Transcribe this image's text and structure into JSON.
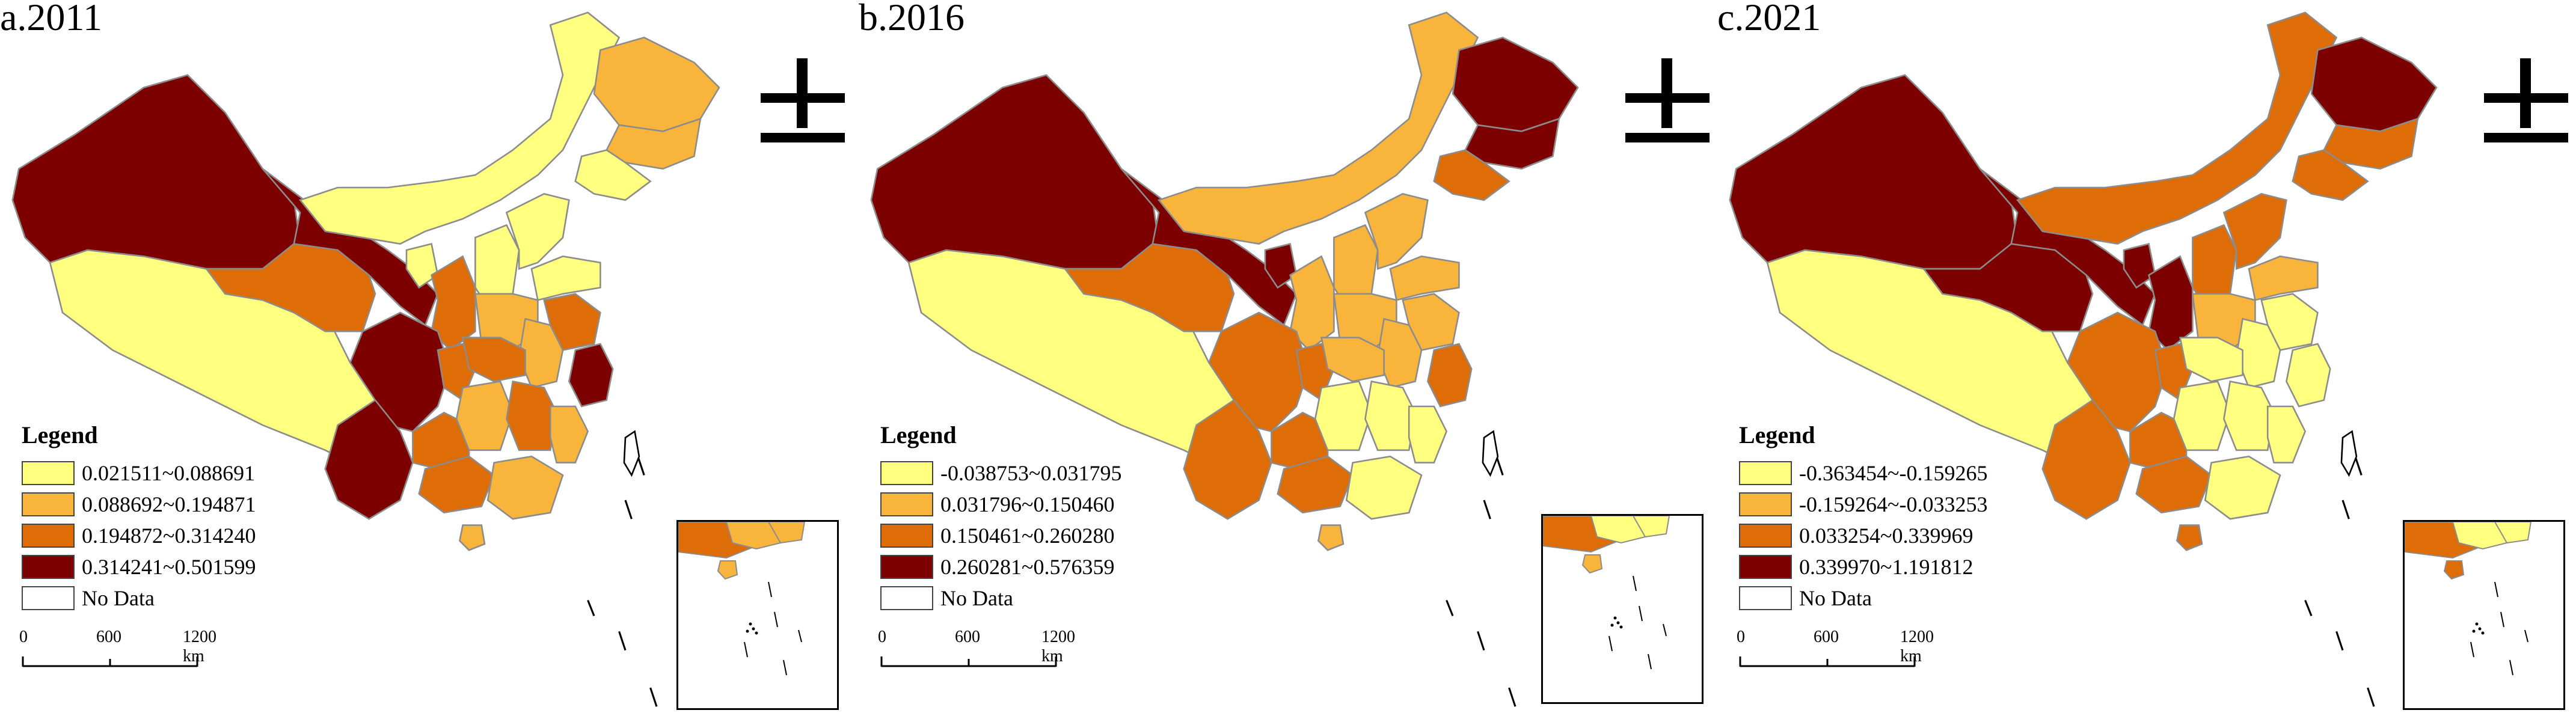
{
  "colors": {
    "class1": "#ffff80",
    "class2": "#f9b43b",
    "class3": "#de6c07",
    "class4": "#7d0000",
    "nodata": "#ffffff",
    "border": "#8c8c8c"
  },
  "panels": [
    {
      "title": "a.2011",
      "legend_title": "Legend",
      "legend": [
        "0.021511~0.088691",
        "0.088692~0.194871",
        "0.194872~0.314240",
        "0.314241~0.501599"
      ],
      "nodata_label": "No Data",
      "scale": [
        "0",
        "600",
        "1200 km"
      ],
      "regions": {
        "xinjiang": 4,
        "tibet": 1,
        "qinghai": 3,
        "gansu": 4,
        "inner_mongolia": 1,
        "heilongjiang": 2,
        "jilin": 2,
        "liaoning": 1,
        "ningxia": 1,
        "shaanxi": 3,
        "shanxi": 1,
        "hebei": 1,
        "shandong": 1,
        "henan": 2,
        "jiangsu": 3,
        "anhui": 2,
        "zhejiang": 4,
        "sichuan": 4,
        "chongqing": 3,
        "yunnan": 4,
        "guizhou": 3,
        "hubei": 3,
        "hunan": 2,
        "jiangxi": 3,
        "guangxi": 3,
        "guangdong": 2,
        "fujian": 2,
        "hainan": 2
      }
    },
    {
      "title": "b.2016",
      "legend_title": "Legend",
      "legend": [
        "-0.038753~0.031795",
        "0.031796~0.150460",
        "0.150461~0.260280",
        "0.260281~0.576359"
      ],
      "nodata_label": "No Data",
      "scale": [
        "0",
        "600",
        "1200 km"
      ],
      "regions": {
        "xinjiang": 4,
        "tibet": 1,
        "qinghai": 3,
        "gansu": 4,
        "inner_mongolia": 2,
        "heilongjiang": 4,
        "jilin": 4,
        "liaoning": 3,
        "ningxia": 4,
        "shaanxi": 2,
        "shanxi": 2,
        "hebei": 2,
        "shandong": 2,
        "henan": 2,
        "jiangsu": 2,
        "anhui": 2,
        "zhejiang": 3,
        "sichuan": 3,
        "chongqing": 3,
        "yunnan": 3,
        "guizhou": 3,
        "hubei": 2,
        "hunan": 1,
        "jiangxi": 1,
        "guangxi": 3,
        "guangdong": 1,
        "fujian": 1,
        "hainan": 2
      }
    },
    {
      "title": "c.2021",
      "legend_title": "Legend",
      "legend": [
        "-0.363454~-0.159265",
        "-0.159264~-0.033253",
        "0.033254~0.339969",
        "0.339970~1.191812"
      ],
      "nodata_label": "No Data",
      "scale": [
        "0",
        "600",
        "1200 km"
      ],
      "regions": {
        "xinjiang": 4,
        "tibet": 1,
        "qinghai": 4,
        "gansu": 4,
        "inner_mongolia": 3,
        "heilongjiang": 4,
        "jilin": 3,
        "liaoning": 3,
        "ningxia": 4,
        "shaanxi": 4,
        "shanxi": 3,
        "hebei": 3,
        "shandong": 2,
        "henan": 2,
        "jiangsu": 1,
        "anhui": 1,
        "zhejiang": 1,
        "sichuan": 3,
        "chongqing": 3,
        "yunnan": 3,
        "guizhou": 3,
        "hubei": 1,
        "hunan": 1,
        "jiangxi": 1,
        "guangxi": 3,
        "guangdong": 1,
        "fujian": 1,
        "hainan": 3
      }
    }
  ]
}
